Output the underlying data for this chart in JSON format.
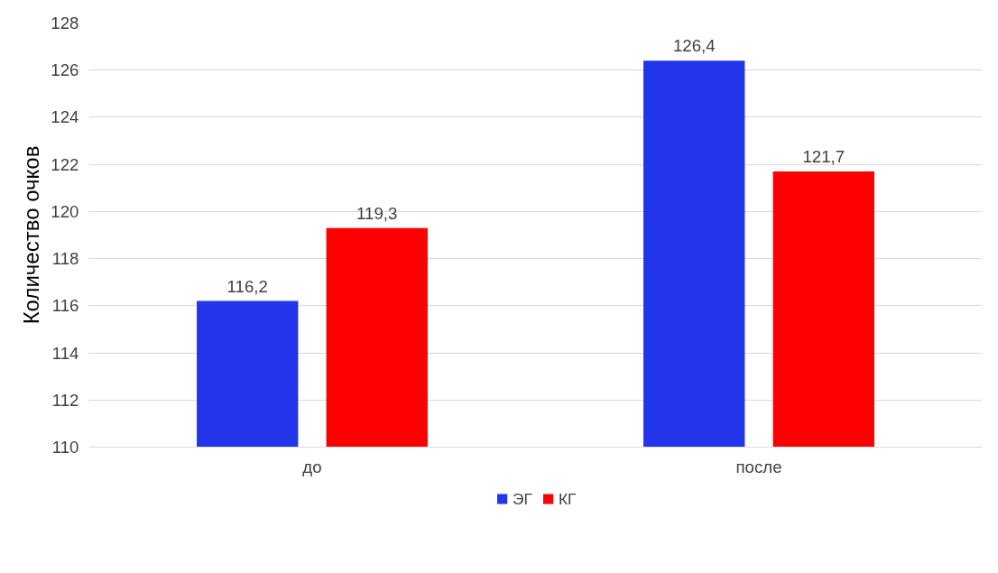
{
  "chart_data": {
    "type": "bar",
    "ylabel": "Количество очков",
    "categories": [
      "до",
      "после"
    ],
    "series": [
      {
        "name": "ЭГ",
        "color": "#2335ea",
        "values": [
          116.2,
          126.4
        ],
        "value_labels": [
          "116,2",
          "126,4"
        ]
      },
      {
        "name": "КГ",
        "color": "#ff0000",
        "values": [
          119.3,
          121.7
        ],
        "value_labels": [
          "119,3",
          "121,7"
        ]
      }
    ],
    "ylim": [
      110,
      128
    ],
    "yticks": [
      110,
      112,
      114,
      116,
      118,
      120,
      122,
      124,
      126,
      128
    ],
    "grid": "y",
    "legend": "bottom"
  }
}
